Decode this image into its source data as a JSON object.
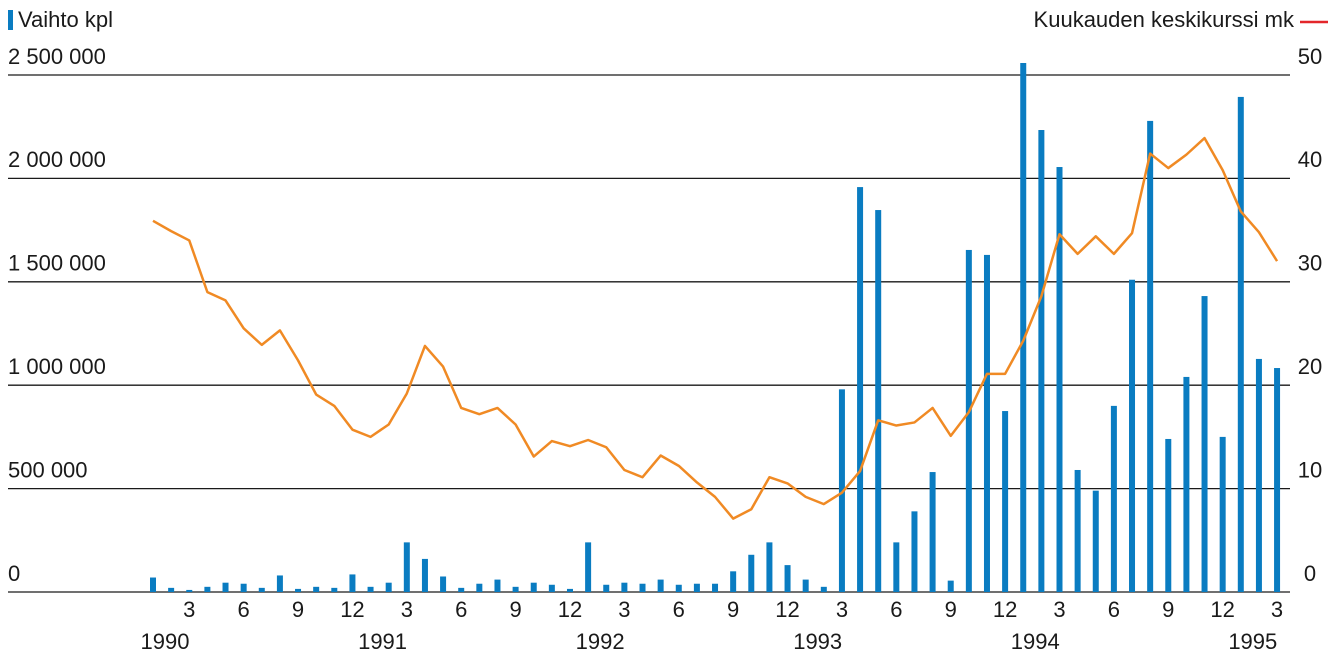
{
  "chart_data": {
    "type": "bar_line",
    "categories": [
      null,
      null,
      "3",
      null,
      null,
      "6",
      null,
      null,
      "9",
      null,
      null,
      "12",
      null,
      null,
      "3",
      null,
      null,
      "6",
      null,
      null,
      "9",
      null,
      null,
      "12",
      null,
      null,
      "3",
      null,
      null,
      "6",
      null,
      null,
      "9",
      null,
      null,
      "12",
      null,
      null,
      "3",
      null,
      null,
      "6",
      null,
      null,
      "9",
      null,
      null,
      "12",
      null,
      null,
      "3",
      null,
      null,
      "6",
      null,
      null,
      "9",
      null,
      null,
      "12",
      null,
      null,
      "3"
    ],
    "years": [
      "1990",
      "1991",
      "1992",
      "1993",
      "1994",
      "1995"
    ],
    "series": [
      {
        "name": "Vaihto kpl",
        "type": "bar",
        "color": "#0a7cc1",
        "values": [
          70000,
          20000,
          10000,
          25000,
          45000,
          40000,
          20000,
          80000,
          15000,
          25000,
          20000,
          85000,
          25000,
          45000,
          240000,
          160000,
          75000,
          20000,
          40000,
          60000,
          25000,
          45000,
          35000,
          15000,
          240000,
          35000,
          45000,
          40000,
          60000,
          35000,
          40000,
          40000,
          100000,
          180000,
          240000,
          130000,
          60000,
          25000,
          980000,
          1958000,
          1847000,
          240000,
          390000,
          580000,
          55000,
          1654000,
          1630000,
          875000,
          2558000,
          2234000,
          2055000,
          590000,
          490000,
          900000,
          1510000,
          2278000,
          740000,
          1040000,
          1431000,
          750000,
          2394000,
          1127000,
          1083000
        ]
      },
      {
        "name": "Kuukauden keskikurssi mk",
        "type": "line",
        "axis": "y2",
        "color": "#f08a24",
        "legend_color": "#e3262a",
        "values": [
          35.9,
          34.9,
          34.0,
          29.0,
          28.2,
          25.5,
          23.9,
          25.3,
          22.4,
          19.1,
          18.0,
          15.7,
          15.0,
          16.2,
          19.2,
          23.8,
          21.8,
          17.8,
          17.2,
          17.8,
          16.2,
          13.1,
          14.6,
          14.1,
          14.7,
          14.0,
          11.8,
          11.1,
          13.2,
          12.2,
          10.6,
          9.2,
          7.1,
          8.0,
          11.1,
          10.5,
          9.2,
          8.5,
          9.6,
          11.7,
          16.6,
          16.1,
          16.4,
          17.8,
          15.1,
          17.4,
          21.1,
          21.1,
          24.3,
          28.6,
          34.6,
          32.7,
          34.4,
          32.7,
          34.7,
          42.4,
          41.0,
          42.3,
          43.9,
          40.8,
          36.8,
          34.8,
          32.0
        ]
      }
    ],
    "ylim": [
      0,
      2500000
    ],
    "yticks": [
      0,
      {
        "value": 500000,
        "label": "500 000"
      },
      {
        "value": 1000000,
        "label": "1 000 000"
      },
      {
        "value": 1500000,
        "label": "1 500 000"
      },
      {
        "value": 2000000,
        "label": "2 000 000"
      },
      {
        "value": 2500000,
        "label": "2 500 000"
      }
    ],
    "y2lim": [
      0,
      50
    ],
    "y2ticks": [
      0,
      10,
      20,
      30,
      40,
      50
    ],
    "grid": true
  }
}
